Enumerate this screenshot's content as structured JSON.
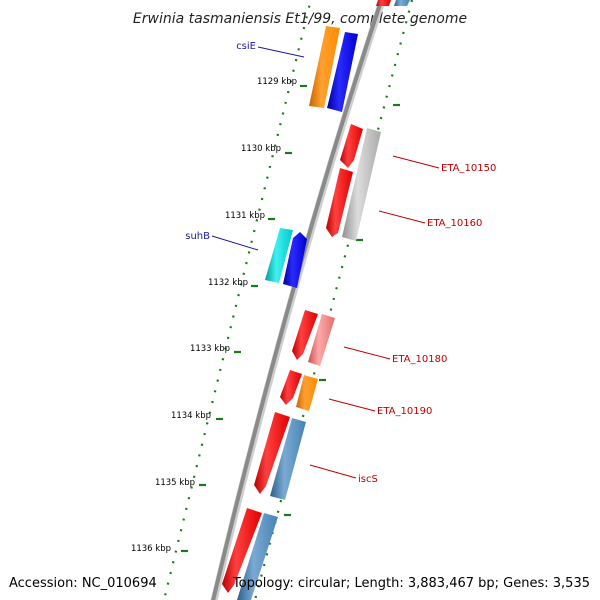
{
  "header": {
    "title": "Erwinia tasmaniensis Et1/99, complete genome"
  },
  "footer": {
    "accession": "Accession: NC_010694",
    "topology": "Topology: circular; Length: 3,883,467 bp; Genes: 3,535"
  },
  "ticks": [
    {
      "label": "1129 kbp"
    },
    {
      "label": "1130 kbp"
    },
    {
      "label": "1131 kbp"
    },
    {
      "label": "1132 kbp"
    },
    {
      "label": "1133 kbp"
    },
    {
      "label": "1134 kbp"
    },
    {
      "label": "1135 kbp"
    },
    {
      "label": "1136 kbp"
    }
  ],
  "gene_labels": [
    {
      "id": "csiE",
      "text": "csiE",
      "color": "#1a1aa0"
    },
    {
      "id": "suhB",
      "text": "suhB",
      "color": "#1a1aa0"
    },
    {
      "id": "eta10150",
      "text": "ETA_10150",
      "color": "#c00000"
    },
    {
      "id": "eta10160",
      "text": "ETA_10160",
      "color": "#c00000"
    },
    {
      "id": "eta10180",
      "text": "ETA_10180",
      "color": "#c00000"
    },
    {
      "id": "eta10190",
      "text": "ETA_10190",
      "color": "#c00000"
    },
    {
      "id": "iscS",
      "text": "iscS",
      "color": "#c00000"
    }
  ],
  "colors": {
    "cds_red": "#ff0000",
    "cds_blue": "#0000ee",
    "cds_orange": "#ff8c00",
    "cds_cyan": "#00cccc",
    "cds_gray": "#b4b4b4",
    "cds_pink": "#ee7a7a",
    "cds_steel": "#4682b4",
    "tick_green": "#1a7a1a",
    "backbone_gray": "#8a8a8a"
  }
}
